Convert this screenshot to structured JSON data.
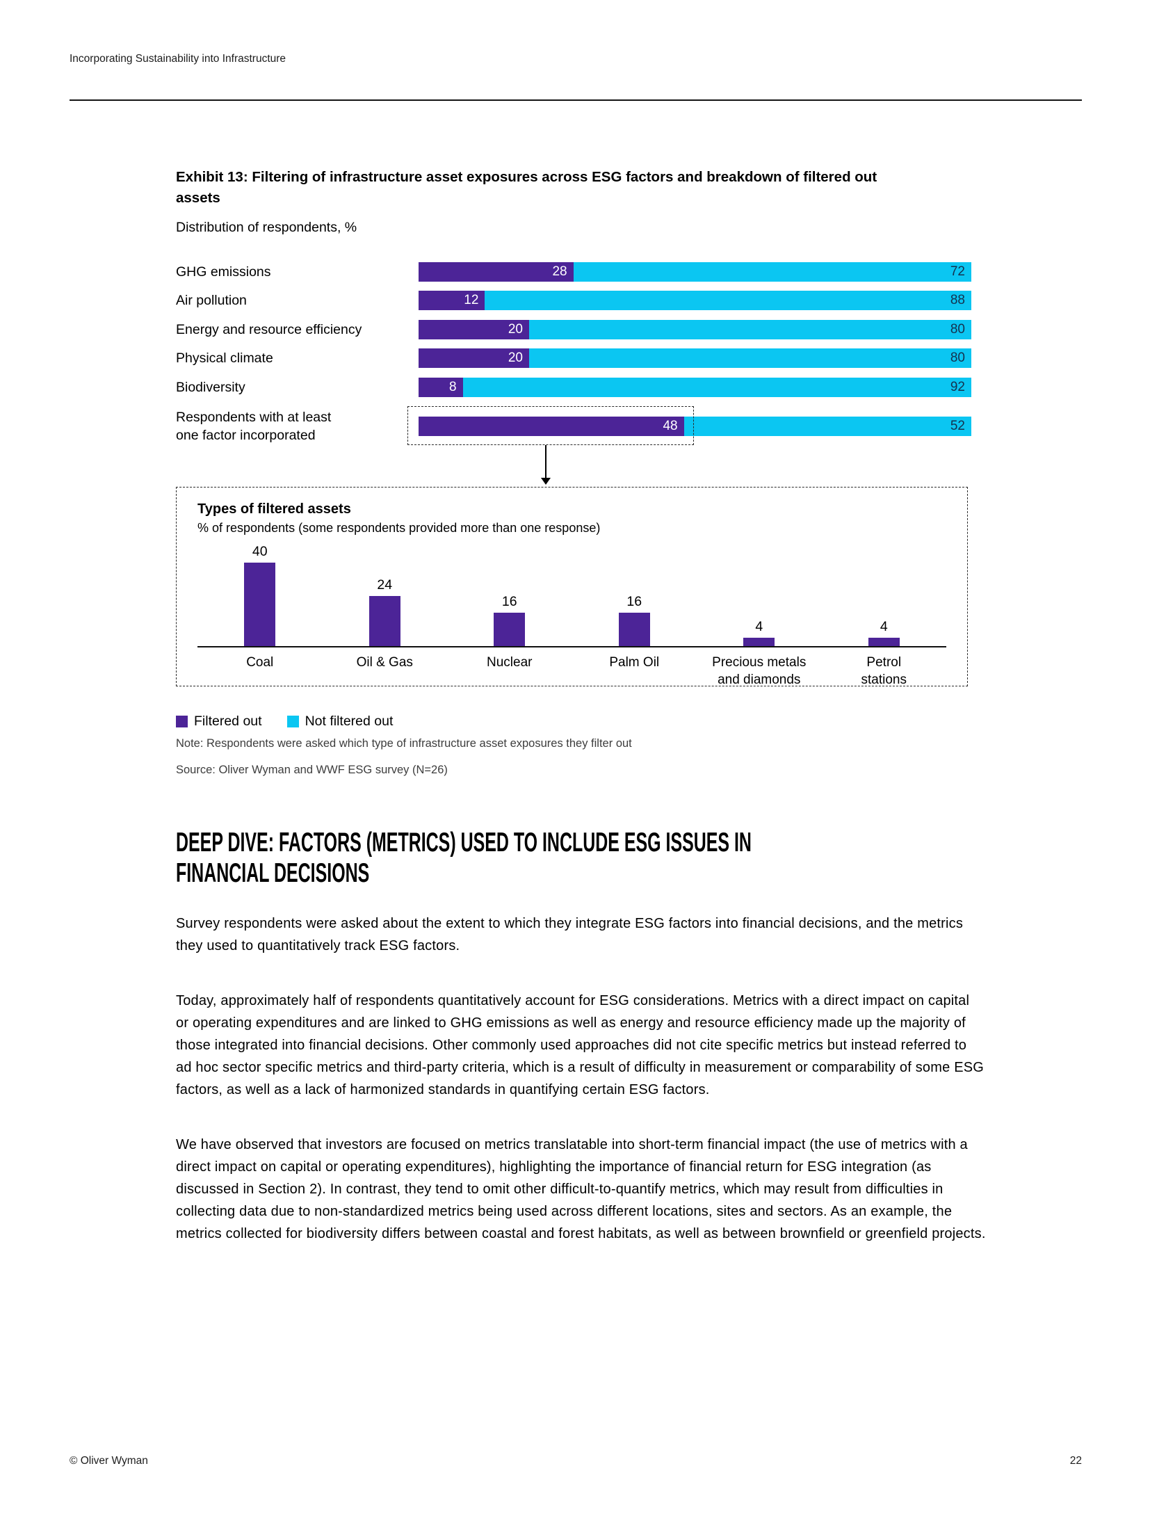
{
  "page": {
    "header_title": "Incorporating Sustainability into Infrastructure",
    "footer_copyright": "© Oliver Wyman",
    "page_number": "22"
  },
  "exhibit": {
    "title": "Exhibit 13: Filtering of infrastructure asset exposures across ESG factors and breakdown of filtered out assets",
    "subtitle": "Distribution of respondents, %",
    "legend": [
      {
        "label": "Filtered out",
        "color": "#4C2497"
      },
      {
        "label": "Not filtered out",
        "color": "#0BC6F2"
      }
    ],
    "note": "Note: Respondents were asked which type of infrastructure asset exposures they filter out",
    "source": "Source: Oliver Wyman and WWF ESG survey (N=26)"
  },
  "chart_data": [
    {
      "type": "bar",
      "variant": "horizontal-stacked",
      "unit": "% of respondents",
      "categories": [
        "GHG emissions",
        "Air pollution",
        "Energy and resource efficiency",
        "Physical climate",
        "Biodiversity",
        "Respondents with at least\none factor incorporated"
      ],
      "series": [
        {
          "name": "Filtered out",
          "color": "#4C2497",
          "values": [
            28,
            12,
            20,
            20,
            8,
            48
          ]
        },
        {
          "name": "Not filtered out",
          "color": "#0BC6F2",
          "values": [
            72,
            88,
            80,
            80,
            92,
            52
          ]
        }
      ],
      "xlim": [
        0,
        100
      ],
      "value_labels": "inside-right",
      "highlight_row": "Respondents with at least one factor incorporated",
      "highlight_style": "dashed-outline-around-filtered-segment-with-arrow-to-breakdown-box"
    },
    {
      "type": "bar",
      "title": "Types of filtered assets",
      "subtitle": "% of respondents (some respondents provided more than one response)",
      "categories": [
        "Coal",
        "Oil & Gas",
        "Nuclear",
        "Palm Oil",
        "Precious metals\nand diamonds",
        "Petrol\nstations"
      ],
      "values": [
        40,
        24,
        16,
        16,
        4,
        4
      ],
      "bar_color": "#4C2497",
      "ylim": [
        0,
        44
      ],
      "value_labels": "above-bars",
      "grid": "off"
    }
  ],
  "section": {
    "heading_lines": [
      "DEEP DIVE: FACTORS (METRICS) USED TO INCLUDE ESG ISSUES IN",
      "FINANCIAL DECISIONS"
    ],
    "paragraphs": [
      "Survey respondents were asked about the extent to which they integrate ESG factors into financial decisions, and the metrics they used to quantitatively track ESG factors.",
      "Today, approximately half of respondents quantitatively account for ESG considerations. Metrics with a direct impact on capital or operating expenditures and are linked to GHG emissions as well as energy and resource efficiency made up the majority of those integrated into financial decisions. Other commonly used approaches did not cite specific metrics but instead referred to ad hoc sector specific metrics and third-party criteria, which is a result of difficulty in measurement or comparability of some ESG factors, as well as a lack of harmonized standards in quantifying certain ESG factors.",
      "We have observed that investors are focused on metrics translatable into short-term financial impact (the use of metrics with a direct impact on capital or operating expenditures), highlighting the importance of financial return for ESG integration (as discussed in Section 2). In contrast, they tend to omit other difficult-to-quantify metrics, which may result from difficulties in collecting data due to non-standardized metrics being used across different locations, sites and sectors. As an example, the metrics collected for biodiversity differs between coastal and forest habitats, as well as between brownfield or greenfield projects."
    ]
  }
}
